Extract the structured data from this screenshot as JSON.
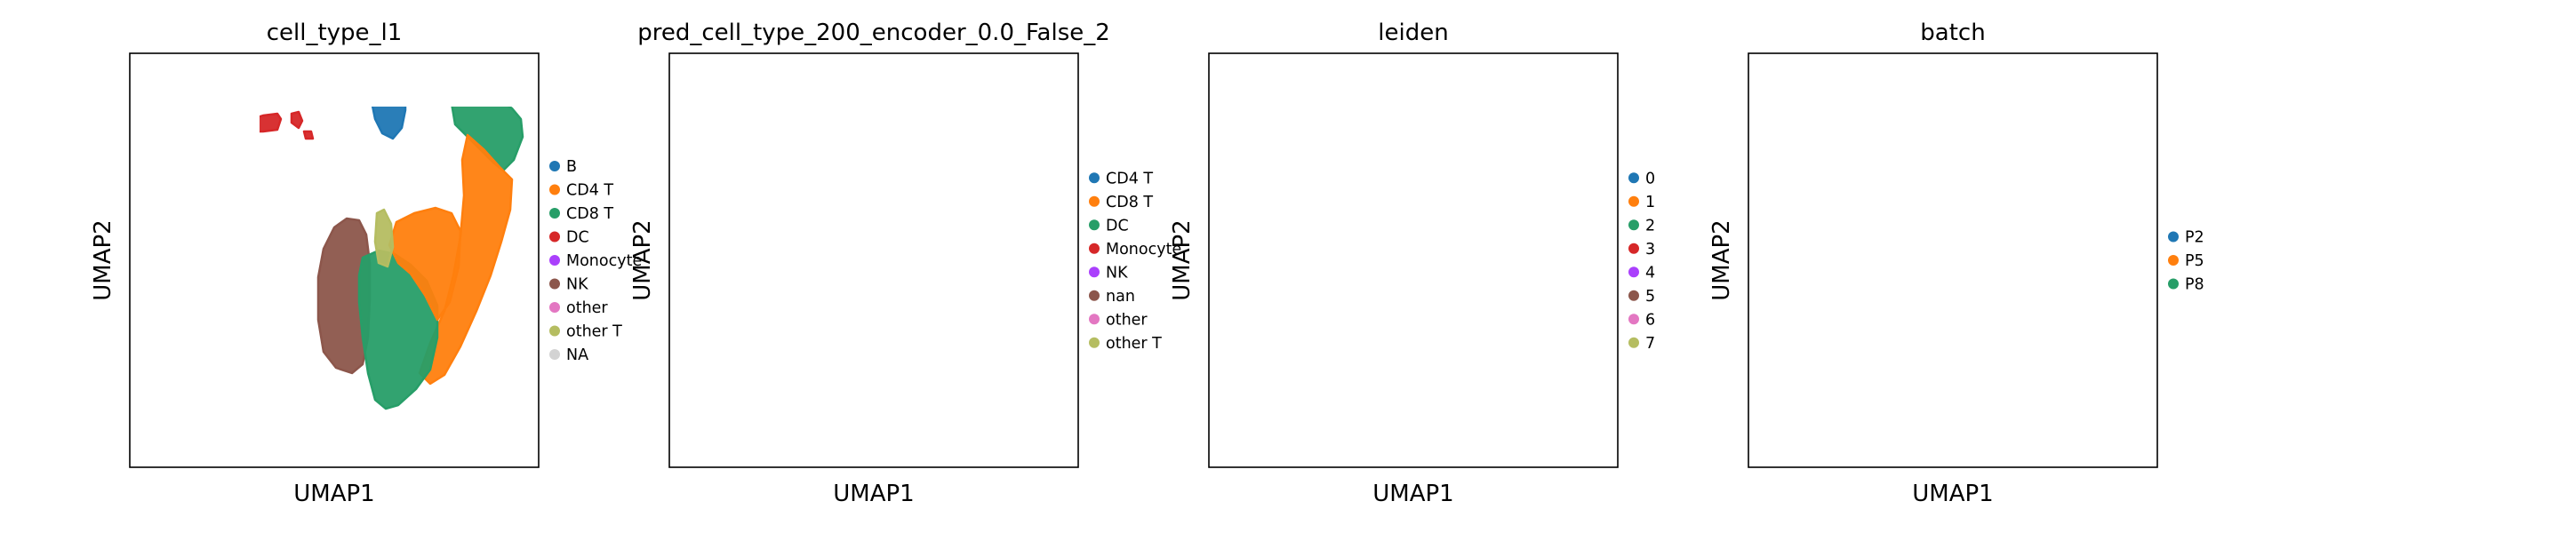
{
  "chart_data": [
    {
      "type": "scatter",
      "title": "cell_type_l1",
      "xlabel": "UMAP1",
      "ylabel": "UMAP2",
      "legend_position": "right",
      "legend": [
        {
          "label": "B",
          "color": "#1f77b4"
        },
        {
          "label": "CD4 T",
          "color": "#ff7f0e"
        },
        {
          "label": "CD8 T",
          "color": "#279e68"
        },
        {
          "label": "DC",
          "color": "#d62728"
        },
        {
          "label": "Monocyte",
          "color": "#aa40fc"
        },
        {
          "label": "NK",
          "color": "#8c564b"
        },
        {
          "label": "other",
          "color": "#e377c2"
        },
        {
          "label": "other T",
          "color": "#b5bd61"
        },
        {
          "label": "NA",
          "color": "#d3d3d3"
        }
      ],
      "clusters": [
        {
          "region": "large-left",
          "color": "#aa40fc"
        },
        {
          "region": "left-strip",
          "color": "#aa40fc"
        },
        {
          "region": "top-bridge",
          "color": "#d62728"
        },
        {
          "region": "top-dots",
          "color": "#d62728"
        },
        {
          "region": "top-mid",
          "color": "#1f77b4"
        },
        {
          "region": "right-top",
          "color": "#279e68"
        },
        {
          "region": "right-arm",
          "color": "#ff7f0e"
        },
        {
          "region": "body-left",
          "color": "#8c564b"
        },
        {
          "region": "body-center",
          "color": "#279e68"
        },
        {
          "region": "body-right",
          "color": "#ff7f0e"
        },
        {
          "region": "body-small",
          "color": "#b5bd61"
        },
        {
          "region": "bottom-isolated",
          "color": "#e377c2"
        }
      ]
    },
    {
      "type": "scatter",
      "title": "pred_cell_type_200_encoder_0.0_False_2",
      "xlabel": "UMAP1",
      "ylabel": "UMAP2",
      "legend_position": "right",
      "legend": [
        {
          "label": "CD4 T",
          "color": "#1f77b4"
        },
        {
          "label": "CD8 T",
          "color": "#ff7f0e"
        },
        {
          "label": "DC",
          "color": "#279e68"
        },
        {
          "label": "Monocyte",
          "color": "#d62728"
        },
        {
          "label": "NK",
          "color": "#aa40fc"
        },
        {
          "label": "nan",
          "color": "#8c564b"
        },
        {
          "label": "other",
          "color": "#e377c2"
        },
        {
          "label": "other T",
          "color": "#b5bd61"
        }
      ],
      "clusters": [
        {
          "region": "large-left",
          "color": "#d62728"
        },
        {
          "region": "left-strip",
          "color": "#e377c2"
        },
        {
          "region": "top-bridge",
          "color": "#279e68"
        },
        {
          "region": "top-dots",
          "color": "#1f77b4"
        },
        {
          "region": "top-mid",
          "color": "#1f77b4"
        },
        {
          "region": "right-top",
          "color": "#ff7f0e"
        },
        {
          "region": "right-arm",
          "color": "#1f77b4"
        },
        {
          "region": "body-left",
          "color": "#aa40fc"
        },
        {
          "region": "body-center",
          "color": "#ff7f0e"
        },
        {
          "region": "body-right",
          "color": "#1f77b4"
        },
        {
          "region": "body-small",
          "color": "#1f77b4"
        },
        {
          "region": "bottom-isolated",
          "color": "#e377c2"
        }
      ]
    },
    {
      "type": "scatter",
      "title": "leiden",
      "xlabel": "UMAP1",
      "ylabel": "UMAP2",
      "legend_position": "right",
      "legend": [
        {
          "label": "0",
          "color": "#1f77b4"
        },
        {
          "label": "1",
          "color": "#ff7f0e"
        },
        {
          "label": "2",
          "color": "#279e68"
        },
        {
          "label": "3",
          "color": "#d62728"
        },
        {
          "label": "4",
          "color": "#aa40fc"
        },
        {
          "label": "5",
          "color": "#8c564b"
        },
        {
          "label": "6",
          "color": "#e377c2"
        },
        {
          "label": "7",
          "color": "#b5bd61"
        }
      ],
      "clusters": [
        {
          "region": "large-left",
          "color": "#ff7f0e"
        },
        {
          "region": "left-strip",
          "color": "#8c564b"
        },
        {
          "region": "top-bridge",
          "color": "#e377c2"
        },
        {
          "region": "top-dots",
          "color": "#e377c2"
        },
        {
          "region": "top-mid",
          "color": "#aa40fc"
        },
        {
          "region": "right-top",
          "color": "#279e68"
        },
        {
          "region": "right-arm",
          "color": "#279e68"
        },
        {
          "region": "body-left",
          "color": "#1f77b4"
        },
        {
          "region": "body-center",
          "color": "#1f77b4"
        },
        {
          "region": "body-right",
          "color": "#d62728"
        },
        {
          "region": "body-small",
          "color": "#d62728"
        },
        {
          "region": "bottom-isolated",
          "color": "#b5bd61"
        }
      ]
    },
    {
      "type": "scatter",
      "title": "batch",
      "xlabel": "UMAP1",
      "ylabel": "UMAP2",
      "legend_position": "right",
      "legend": [
        {
          "label": "P2",
          "color": "#1f77b4"
        },
        {
          "label": "P5",
          "color": "#ff7f0e"
        },
        {
          "label": "P8",
          "color": "#279e68"
        }
      ],
      "clusters": [
        {
          "region": "large-left",
          "color": "#1f77b4",
          "speckle": "#ff7f0e"
        },
        {
          "region": "left-strip",
          "color": "#1f77b4",
          "speckle": "#ff7f0e"
        },
        {
          "region": "top-bridge",
          "color": "#1f77b4",
          "speckle": "#ff7f0e"
        },
        {
          "region": "top-dots",
          "color": "#1f77b4"
        },
        {
          "region": "top-mid",
          "color": "#1f77b4"
        },
        {
          "region": "right-top",
          "color": "#1f77b4"
        },
        {
          "region": "right-arm",
          "color": "#1f77b4"
        },
        {
          "region": "body-left",
          "color": "#1f77b4",
          "speckle": "#ff7f0e"
        },
        {
          "region": "body-center",
          "color": "#1f77b4",
          "speckle": "#ff7f0e"
        },
        {
          "region": "body-right",
          "color": "#1f77b4",
          "speckle": "#ff7f0e"
        },
        {
          "region": "body-small",
          "color": "#1f77b4"
        },
        {
          "region": "bottom-isolated",
          "color": "#1f77b4",
          "speckle": "#ff7f0e"
        }
      ]
    }
  ]
}
